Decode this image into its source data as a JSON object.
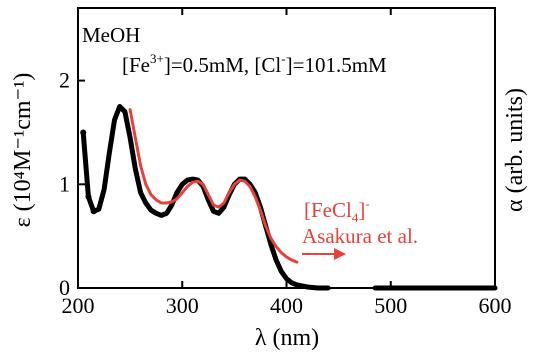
{
  "chart_data": {
    "type": "line",
    "xlabel": "λ (nm)",
    "ylabel_left": "ε (10⁴M⁻¹cm⁻¹)",
    "ylabel_right": "α (arb. units)",
    "xlim": [
      200,
      600
    ],
    "ylim": [
      0,
      2.7
    ],
    "x_ticks": [
      200,
      300,
      400,
      500,
      600
    ],
    "y_ticks": [
      0,
      1,
      2
    ],
    "x_tick_labels": [
      "200",
      "300",
      "400",
      "500",
      "600"
    ],
    "y_tick_labels": [
      "0",
      "1",
      "2"
    ],
    "annotations": {
      "solvent": "MeOH",
      "conc_prefix": "[Fe",
      "conc_sup1": "3+",
      "conc_mid": "]=0.5mM, [Cl",
      "conc_sup2": "-",
      "conc_suffix": "]=101.5mM",
      "ref_prefix": "[FeCl",
      "ref_sub": "4",
      "ref_close": "]",
      "ref_sup": "-",
      "ref_author": "Asakura et al."
    },
    "series": [
      {
        "color": "#000000",
        "x": [
          205,
          210,
          215,
          220,
          225,
          230,
          235,
          240,
          245,
          250,
          255,
          260,
          265,
          270,
          275,
          280,
          285,
          290,
          295,
          300,
          305,
          310,
          315,
          320,
          325,
          330,
          335,
          340,
          345,
          350,
          355,
          360,
          365,
          370,
          375,
          380,
          385,
          390,
          395,
          400,
          405,
          410,
          415,
          420,
          425,
          430,
          435,
          440
        ],
        "y": [
          1.5,
          0.88,
          0.74,
          0.76,
          0.95,
          1.3,
          1.62,
          1.75,
          1.7,
          1.45,
          1.15,
          0.92,
          0.82,
          0.75,
          0.72,
          0.7,
          0.72,
          0.8,
          0.92,
          1.0,
          1.04,
          1.05,
          1.04,
          0.98,
          0.85,
          0.74,
          0.72,
          0.78,
          0.9,
          1.0,
          1.05,
          1.05,
          1.0,
          0.92,
          0.78,
          0.6,
          0.42,
          0.27,
          0.16,
          0.09,
          0.05,
          0.03,
          0.02,
          0.01,
          0.005,
          0.0,
          0.0,
          0.0
        ]
      },
      {
        "color": "#000000",
        "x": [
          485,
          500,
          520,
          540,
          560,
          580,
          600
        ],
        "y": [
          0.0,
          0.0,
          0.0,
          0.0,
          0.0,
          0.0,
          0.0
        ]
      },
      {
        "color": "#e8413a",
        "x": [
          250,
          255,
          260,
          265,
          270,
          275,
          280,
          285,
          290,
          295,
          300,
          305,
          310,
          315,
          320,
          325,
          330,
          335,
          340,
          345,
          350,
          355,
          360,
          365,
          370,
          375,
          380,
          385,
          390,
          395,
          400,
          405,
          410
        ],
        "y": [
          1.72,
          1.45,
          1.18,
          1.0,
          0.9,
          0.85,
          0.82,
          0.82,
          0.83,
          0.86,
          0.92,
          0.98,
          1.02,
          1.03,
          1.0,
          0.9,
          0.8,
          0.78,
          0.82,
          0.92,
          1.0,
          1.04,
          1.03,
          0.98,
          0.88,
          0.75,
          0.6,
          0.48,
          0.4,
          0.34,
          0.3,
          0.27,
          0.25
        ]
      }
    ]
  }
}
